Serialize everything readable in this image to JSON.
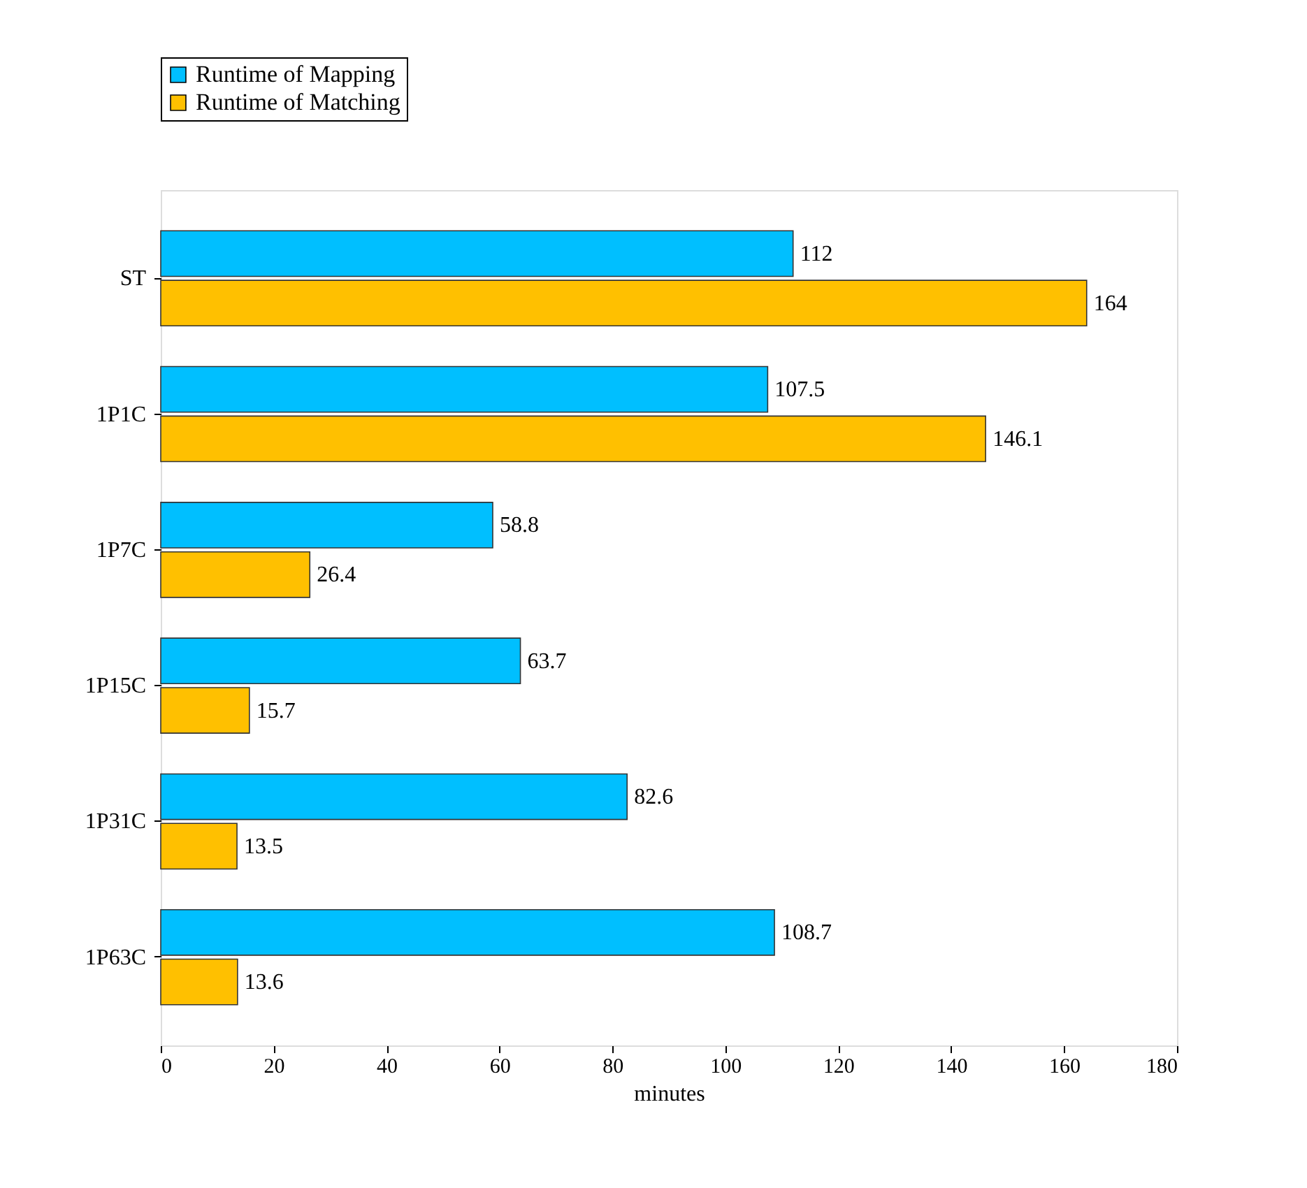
{
  "chart_data": {
    "type": "bar",
    "orientation": "horizontal",
    "xlabel": "minutes",
    "categories": [
      "ST",
      "1P1C",
      "1P7C",
      "1P15C",
      "1P31C",
      "1P63C"
    ],
    "series": [
      {
        "name": "Runtime of Mapping",
        "color": "#00bfff",
        "values": [
          112,
          107.5,
          58.8,
          63.7,
          82.6,
          108.7
        ]
      },
      {
        "name": "Runtime of Matching",
        "color": "#ffc000",
        "values": [
          164,
          146.1,
          26.4,
          15.7,
          13.5,
          13.6
        ]
      }
    ],
    "xlim": [
      0,
      180
    ],
    "xticks": [
      0,
      20,
      40,
      60,
      80,
      100,
      120,
      140,
      160,
      180
    ],
    "data_labels": true,
    "grid": false,
    "legend": "top"
  }
}
